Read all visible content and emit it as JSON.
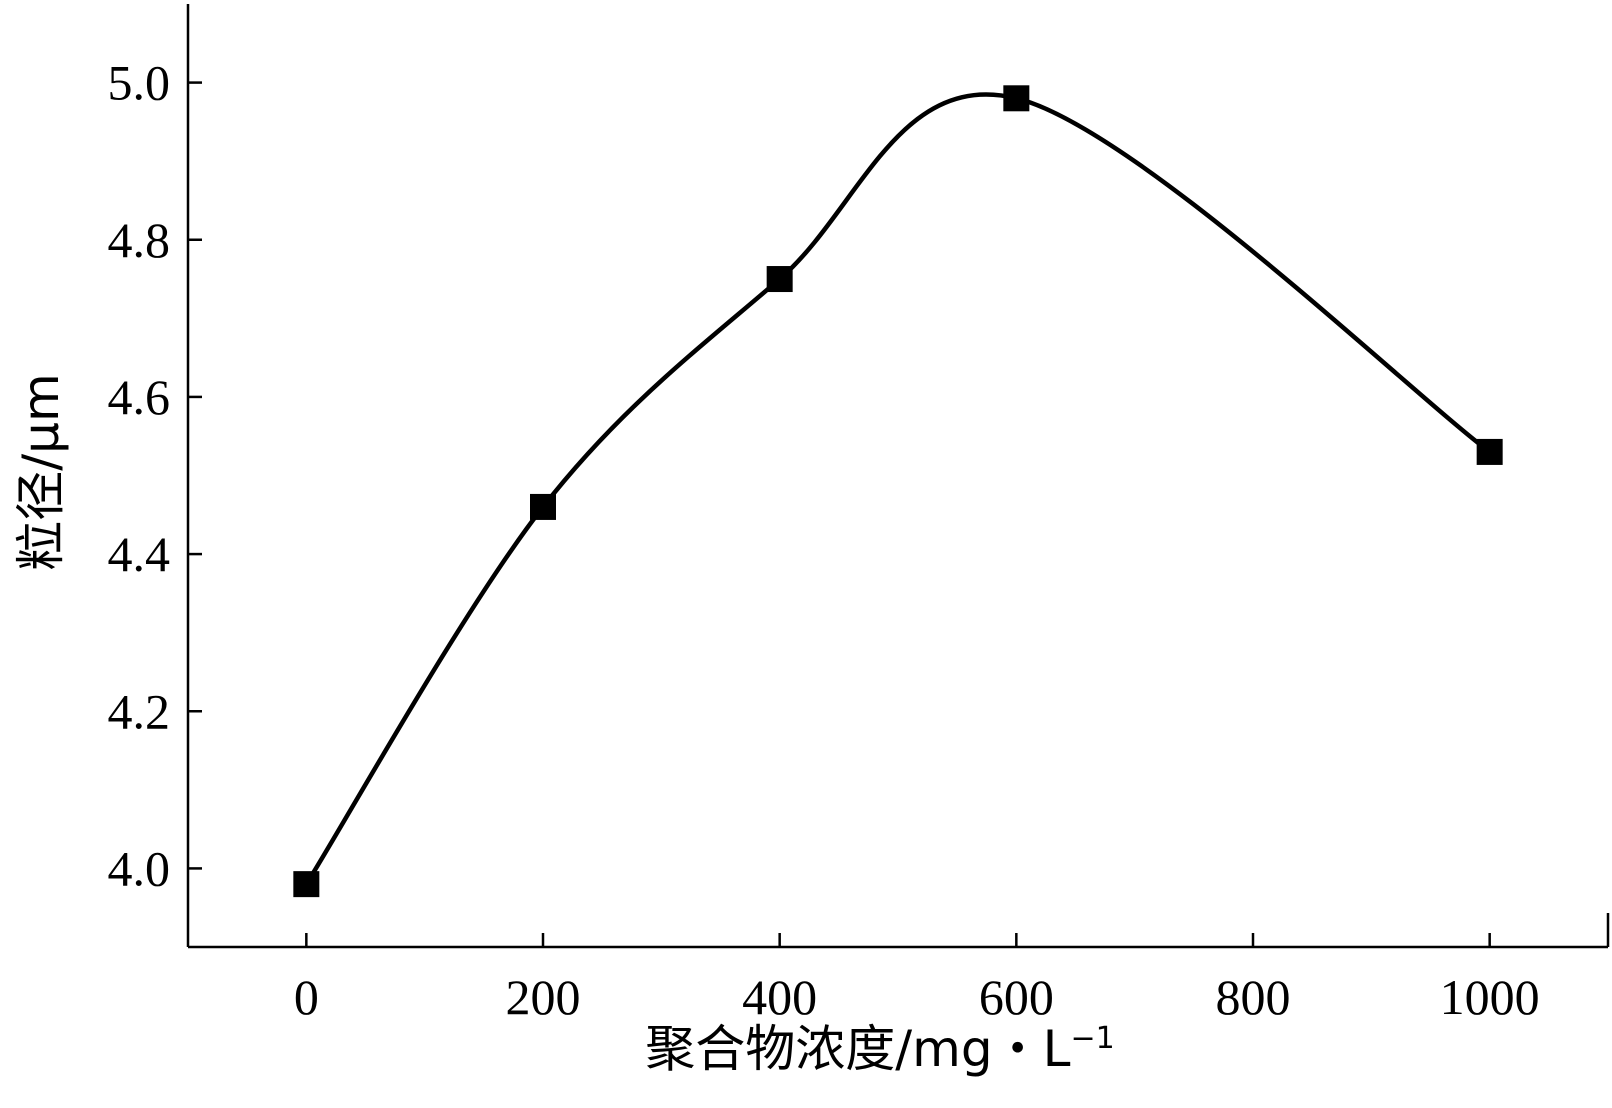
{
  "chart_data": {
    "type": "line",
    "title": "",
    "xlabel": "聚合物浓度/mg・L",
    "xlabel_sup": "−1",
    "ylabel": "粒径/μm",
    "xlim": [
      -100,
      1100
    ],
    "ylim": [
      3.9,
      5.1
    ],
    "x_ticks": [
      0,
      200,
      400,
      600,
      800,
      1000
    ],
    "y_ticks": [
      4.0,
      4.2,
      4.4,
      4.6,
      4.8,
      5.0
    ],
    "x_tick_labels": [
      "0",
      "200",
      "400",
      "600",
      "800",
      "1000"
    ],
    "y_tick_labels": [
      "4.0",
      "4.2",
      "4.4",
      "4.6",
      "4.8",
      "5.0"
    ],
    "grid": false,
    "legend": "none",
    "marker": "square",
    "line": "smooth",
    "series": [
      {
        "x": [
          0,
          200,
          400,
          600,
          1000
        ],
        "y": [
          3.98,
          4.46,
          4.75,
          4.98,
          4.53
        ]
      }
    ]
  }
}
